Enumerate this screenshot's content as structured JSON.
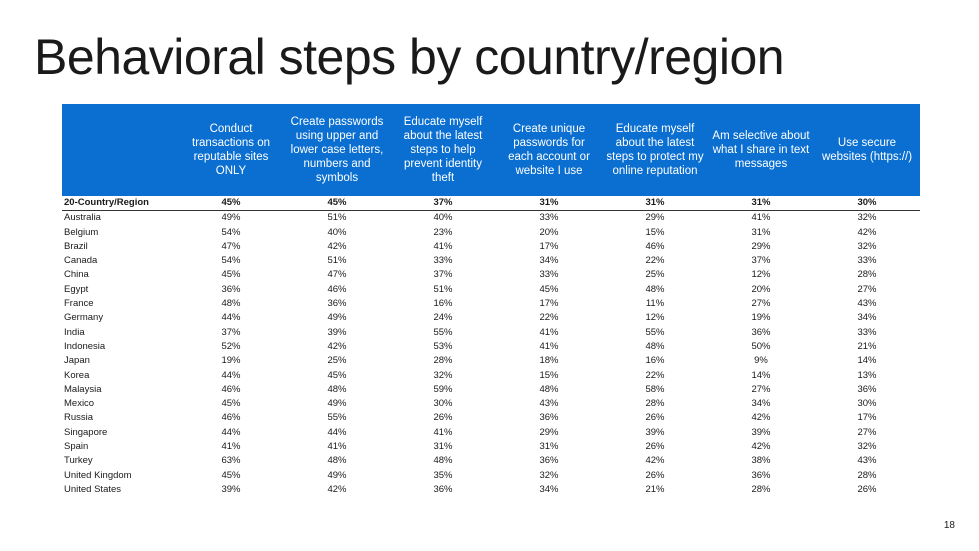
{
  "title": "Behavioral steps by country/region",
  "columns": [
    "",
    "Conduct transactions on reputable sites ONLY",
    "Create passwords using upper and lower case letters, numbers and symbols",
    "Educate myself about the latest steps to help prevent identity theft",
    "Create unique passwords for each account or website I use",
    "Educate myself about the latest steps to protect my online reputation",
    "Am selective about what I share in text messages",
    "Use secure websites (https://)"
  ],
  "rows": [
    [
      "20-Country/Region",
      "45%",
      "45%",
      "37%",
      "31%",
      "31%",
      "31%",
      "30%"
    ],
    [
      "Australia",
      "49%",
      "51%",
      "40%",
      "33%",
      "29%",
      "41%",
      "32%"
    ],
    [
      "Belgium",
      "54%",
      "40%",
      "23%",
      "20%",
      "15%",
      "31%",
      "42%"
    ],
    [
      "Brazil",
      "47%",
      "42%",
      "41%",
      "17%",
      "46%",
      "29%",
      "32%"
    ],
    [
      "Canada",
      "54%",
      "51%",
      "33%",
      "34%",
      "22%",
      "37%",
      "33%"
    ],
    [
      "China",
      "45%",
      "47%",
      "37%",
      "33%",
      "25%",
      "12%",
      "28%"
    ],
    [
      "Egypt",
      "36%",
      "46%",
      "51%",
      "45%",
      "48%",
      "20%",
      "27%"
    ],
    [
      "France",
      "48%",
      "36%",
      "16%",
      "17%",
      "11%",
      "27%",
      "43%"
    ],
    [
      "Germany",
      "44%",
      "49%",
      "24%",
      "22%",
      "12%",
      "19%",
      "34%"
    ],
    [
      "India",
      "37%",
      "39%",
      "55%",
      "41%",
      "55%",
      "36%",
      "33%"
    ],
    [
      "Indonesia",
      "52%",
      "42%",
      "53%",
      "41%",
      "48%",
      "50%",
      "21%"
    ],
    [
      "Japan",
      "19%",
      "25%",
      "28%",
      "18%",
      "16%",
      "9%",
      "14%"
    ],
    [
      "Korea",
      "44%",
      "45%",
      "32%",
      "15%",
      "22%",
      "14%",
      "13%"
    ],
    [
      "Malaysia",
      "46%",
      "48%",
      "59%",
      "48%",
      "58%",
      "27%",
      "36%"
    ],
    [
      "Mexico",
      "45%",
      "49%",
      "30%",
      "43%",
      "28%",
      "34%",
      "30%"
    ],
    [
      "Russia",
      "46%",
      "55%",
      "26%",
      "36%",
      "26%",
      "42%",
      "17%"
    ],
    [
      "Singapore",
      "44%",
      "44%",
      "41%",
      "29%",
      "39%",
      "39%",
      "27%"
    ],
    [
      "Spain",
      "41%",
      "41%",
      "31%",
      "31%",
      "26%",
      "42%",
      "32%"
    ],
    [
      "Turkey",
      "63%",
      "48%",
      "48%",
      "36%",
      "42%",
      "38%",
      "43%"
    ],
    [
      "United Kingdom",
      "45%",
      "49%",
      "35%",
      "32%",
      "26%",
      "36%",
      "28%"
    ],
    [
      "United States",
      "39%",
      "42%",
      "36%",
      "34%",
      "21%",
      "28%",
      "26%"
    ]
  ],
  "page_number": "18",
  "colors": {
    "header_bg": "#0a6fd1",
    "header_text": "#ffffff"
  }
}
